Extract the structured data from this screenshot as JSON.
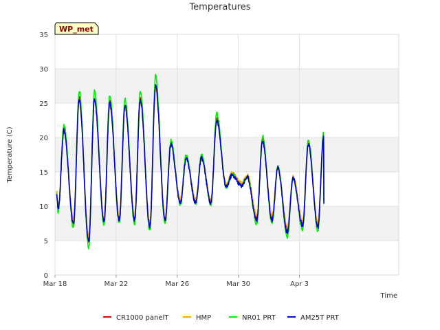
{
  "chart_data": {
    "type": "line",
    "title": "Temperatures",
    "xlabel": "Time",
    "ylabel": "Temperature (C)",
    "ylim": [
      0,
      35
    ],
    "xlim": [
      0,
      22.5
    ],
    "yticks": [
      0,
      5,
      10,
      15,
      20,
      25,
      30,
      35
    ],
    "xticks": [
      {
        "label": "Mar 18",
        "value": 0
      },
      {
        "label": "Mar 22",
        "value": 4
      },
      {
        "label": "Mar 26",
        "value": 8
      },
      {
        "label": "Mar 30",
        "value": 12
      },
      {
        "label": "Apr 3",
        "value": 16
      }
    ],
    "badge": "WP_met",
    "legend_position": "bottom",
    "day_extremes": {
      "days": [
        0,
        1,
        2,
        3,
        4,
        5,
        6,
        7,
        8,
        9,
        10,
        11,
        12,
        13,
        14,
        15,
        16,
        17
      ],
      "min": [
        9.5,
        7.5,
        4.8,
        7.8,
        8.0,
        8.0,
        7.0,
        8.0,
        10.5,
        10.5,
        10.5,
        12.8,
        13.0,
        8.0,
        8.0,
        6.2,
        7.2,
        7.0
      ],
      "max": [
        21.0,
        25.5,
        25.5,
        25.0,
        24.5,
        25.5,
        27.5,
        19.0,
        17.0,
        17.0,
        22.5,
        14.5,
        14.2,
        19.5,
        15.5,
        14.0,
        19.0,
        20.0
      ],
      "peak_hour": 14,
      "min_hour": 5
    },
    "start_value": 12.0,
    "end_value": 10.3,
    "series": [
      {
        "name": "CR1000 panelT",
        "color": "#dd0000",
        "offset": 0.4,
        "amp_factor": 1.0
      },
      {
        "name": "HMP",
        "color": "#ffa500",
        "offset": 0.6,
        "amp_factor": 0.95
      },
      {
        "name": "NR01 PRT",
        "color": "#00ee00",
        "offset": 0.2,
        "amp_factor": 1.1
      },
      {
        "name": "AM25T PRT",
        "color": "#0000cc",
        "offset": 0.0,
        "amp_factor": 1.0
      }
    ]
  }
}
